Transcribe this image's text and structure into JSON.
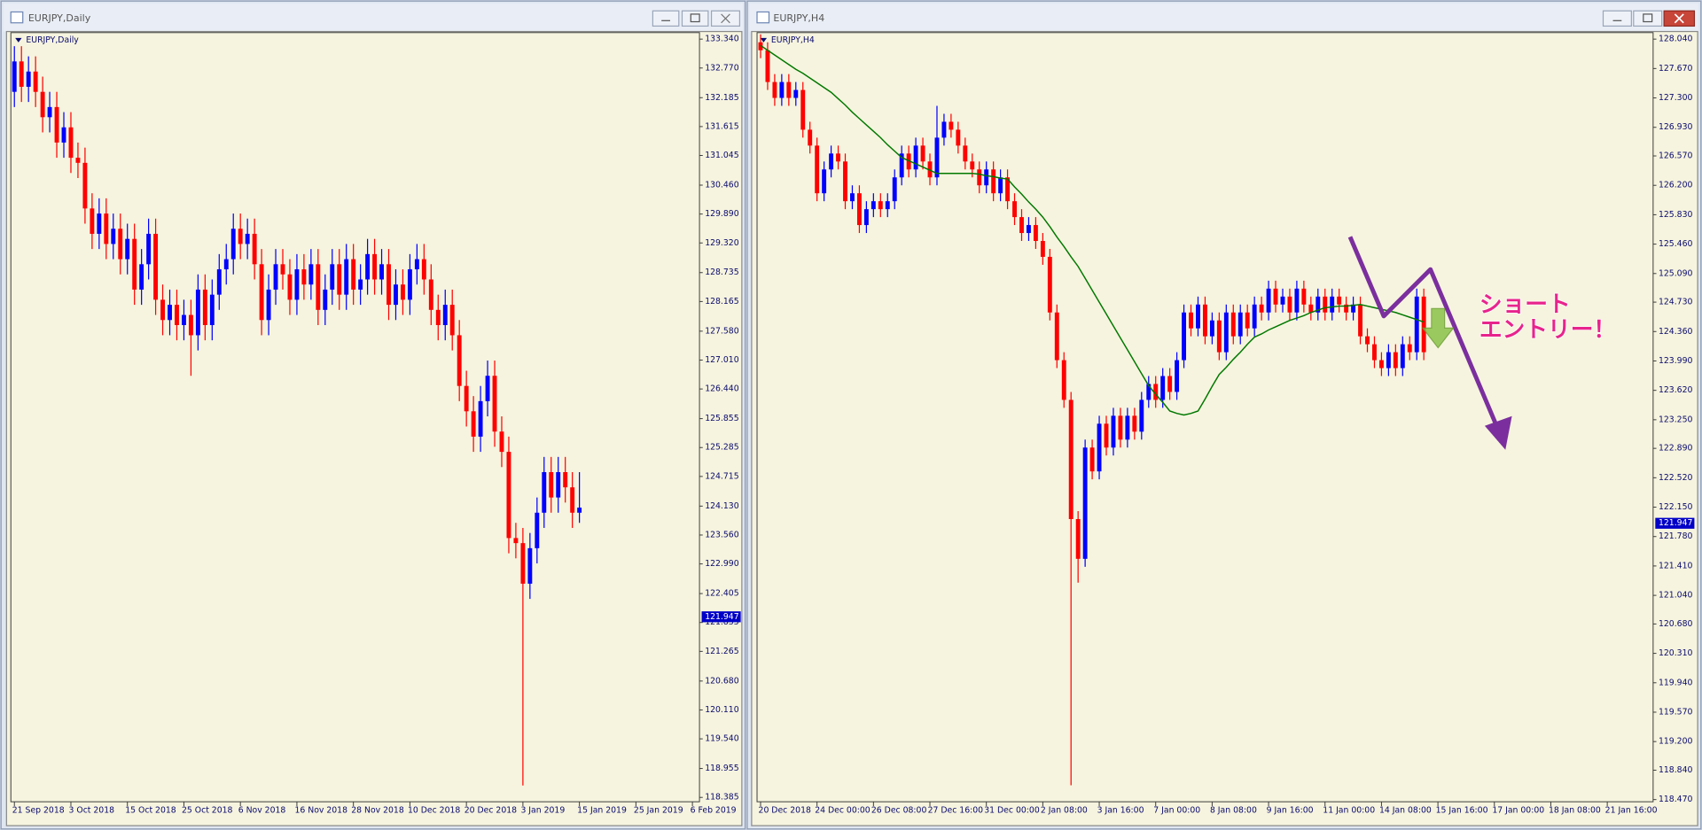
{
  "chart_data": [
    {
      "type": "candlestick",
      "window_title": "EURJPY,Daily",
      "title": "EURJPY,Daily",
      "up_color": "#0000ff",
      "down_color": "#ff0000",
      "open": [
        132.3,
        132.9,
        132.4,
        132.7,
        132.3,
        131.8,
        132.0,
        131.3,
        131.6,
        131.0,
        130.9,
        130.0,
        129.5,
        129.9,
        129.3,
        129.6,
        129.0,
        129.4,
        128.4,
        128.9,
        129.5,
        128.2,
        127.8,
        128.1,
        127.7,
        127.9,
        127.5,
        128.4,
        127.7,
        128.3,
        128.8,
        129.0,
        129.6,
        129.3,
        129.5,
        128.9,
        127.8,
        128.4,
        128.9,
        128.7,
        128.2,
        128.8,
        128.5,
        128.9,
        128.0,
        128.4,
        128.9,
        128.3,
        129.0,
        128.4,
        128.6,
        129.1,
        128.6,
        128.9,
        128.1,
        128.5,
        128.2,
        128.8,
        129.0,
        128.6,
        128.0,
        127.7,
        128.1,
        127.5,
        126.5,
        126.0,
        125.5,
        126.2,
        126.7,
        125.6,
        125.2,
        123.5,
        123.4,
        122.6,
        123.3,
        124.0,
        124.8,
        124.3,
        124.8,
        124.5,
        124.0
      ],
      "high": [
        133.2,
        133.2,
        133.0,
        133.0,
        132.6,
        132.3,
        132.3,
        131.9,
        131.9,
        131.3,
        131.2,
        130.3,
        130.2,
        130.2,
        129.9,
        129.9,
        129.7,
        129.7,
        129.2,
        129.8,
        129.8,
        128.5,
        128.4,
        128.4,
        128.2,
        128.2,
        128.7,
        128.7,
        128.6,
        129.1,
        129.3,
        129.9,
        129.9,
        129.8,
        129.8,
        129.2,
        128.7,
        129.2,
        129.2,
        129.0,
        129.1,
        129.1,
        129.2,
        129.2,
        128.7,
        129.2,
        129.2,
        129.3,
        129.3,
        128.9,
        129.4,
        129.4,
        129.2,
        129.2,
        128.8,
        128.8,
        129.1,
        129.3,
        129.3,
        128.9,
        128.3,
        128.4,
        128.4,
        127.8,
        126.8,
        126.3,
        126.5,
        127.0,
        127.0,
        125.9,
        125.5,
        123.8,
        123.7,
        123.6,
        124.3,
        125.1,
        125.1,
        125.1,
        125.1,
        124.8,
        124.8
      ],
      "low": [
        132.0,
        132.1,
        132.1,
        132.0,
        131.5,
        131.5,
        131.0,
        131.0,
        130.7,
        130.6,
        129.7,
        129.2,
        129.2,
        129.0,
        129.0,
        128.7,
        128.7,
        128.1,
        128.1,
        128.6,
        127.9,
        127.5,
        127.5,
        127.4,
        127.4,
        126.7,
        127.2,
        127.4,
        127.4,
        128.0,
        128.5,
        128.7,
        129.0,
        129.0,
        128.6,
        127.5,
        127.5,
        128.1,
        128.4,
        127.9,
        127.9,
        128.2,
        128.2,
        127.7,
        127.7,
        128.1,
        128.0,
        128.0,
        128.1,
        128.1,
        128.3,
        128.3,
        128.3,
        127.8,
        127.8,
        127.9,
        127.9,
        128.5,
        128.3,
        127.7,
        127.4,
        127.4,
        127.2,
        126.2,
        125.7,
        125.2,
        125.2,
        125.9,
        125.3,
        124.9,
        123.2,
        123.1,
        118.62,
        122.3,
        123.0,
        123.7,
        124.0,
        124.0,
        124.2,
        123.7,
        123.8
      ],
      "close": [
        132.9,
        132.4,
        132.7,
        132.3,
        131.8,
        132.0,
        131.3,
        131.6,
        131.0,
        130.9,
        130.0,
        129.5,
        129.9,
        129.3,
        129.6,
        129.0,
        129.4,
        128.4,
        128.9,
        129.5,
        128.2,
        127.8,
        128.1,
        127.7,
        127.9,
        127.5,
        128.4,
        127.7,
        128.3,
        128.8,
        129.0,
        129.6,
        129.3,
        129.5,
        128.9,
        127.8,
        128.4,
        128.9,
        128.7,
        128.2,
        128.8,
        128.5,
        128.9,
        128.0,
        128.4,
        128.9,
        128.3,
        129.0,
        128.4,
        128.6,
        129.1,
        128.6,
        128.9,
        128.1,
        128.5,
        128.2,
        128.8,
        129.0,
        128.6,
        128.0,
        127.7,
        128.1,
        127.5,
        126.5,
        126.0,
        125.5,
        126.2,
        126.7,
        125.6,
        125.2,
        123.5,
        123.4,
        122.6,
        123.3,
        124.0,
        124.8,
        124.3,
        124.8,
        124.5,
        124.0,
        124.1
      ],
      "current_price": 121.947,
      "xlim": [
        -0.5,
        97
      ],
      "xticks": [
        {
          "value": 0,
          "label": "21 Sep 2018"
        },
        {
          "value": 8,
          "label": "3 Oct 2018"
        },
        {
          "value": 16,
          "label": "15 Oct 2018"
        },
        {
          "value": 24,
          "label": "25 Oct 2018"
        },
        {
          "value": 32,
          "label": "6 Nov 2018"
        },
        {
          "value": 40,
          "label": "16 Nov 2018"
        },
        {
          "value": 48,
          "label": "28 Nov 2018"
        },
        {
          "value": 56,
          "label": "10 Dec 2018"
        },
        {
          "value": 64,
          "label": "20 Dec 2018"
        },
        {
          "value": 72,
          "label": "3 Jan 2019"
        },
        {
          "value": 80,
          "label": "15 Jan 2019"
        },
        {
          "value": 88,
          "label": "25 Jan 2019"
        },
        {
          "value": 96,
          "label": "6 Feb 2019"
        }
      ],
      "ylim": [
        118.385,
        133.34
      ],
      "yticks": [
        {
          "value": 133.34,
          "label": "133.340"
        },
        {
          "value": 132.77,
          "label": "132.770"
        },
        {
          "value": 132.185,
          "label": "132.185"
        },
        {
          "value": 131.615,
          "label": "131.615"
        },
        {
          "value": 131.045,
          "label": "131.045"
        },
        {
          "value": 130.46,
          "label": "130.460"
        },
        {
          "value": 129.89,
          "label": "129.890"
        },
        {
          "value": 129.32,
          "label": "129.320"
        },
        {
          "value": 128.735,
          "label": "128.735"
        },
        {
          "value": 128.165,
          "label": "128.165"
        },
        {
          "value": 127.58,
          "label": "127.580"
        },
        {
          "value": 127.01,
          "label": "127.010"
        },
        {
          "value": 126.44,
          "label": "126.440"
        },
        {
          "value": 125.855,
          "label": "125.855"
        },
        {
          "value": 125.285,
          "label": "125.285"
        },
        {
          "value": 124.715,
          "label": "124.715"
        },
        {
          "value": 124.13,
          "label": "124.130"
        },
        {
          "value": 123.56,
          "label": "123.560"
        },
        {
          "value": 122.99,
          "label": "122.990"
        },
        {
          "value": 122.405,
          "label": "122.405"
        },
        {
          "value": 121.835,
          "label": "121.835"
        },
        {
          "value": 121.265,
          "label": "121.265"
        },
        {
          "value": 120.68,
          "label": "120.680"
        },
        {
          "value": 120.11,
          "label": "120.110"
        },
        {
          "value": 119.54,
          "label": "119.540"
        },
        {
          "value": 118.955,
          "label": "118.955"
        },
        {
          "value": 118.385,
          "label": "118.385"
        }
      ]
    },
    {
      "type": "candlestick",
      "window_title": "EURJPY,H4",
      "title": "EURJPY,H4",
      "up_color": "#0000ff",
      "down_color": "#ff0000",
      "open": [
        128.0,
        127.9,
        127.5,
        127.3,
        127.5,
        127.3,
        127.4,
        126.9,
        126.7,
        126.1,
        126.4,
        126.6,
        126.5,
        126.0,
        126.1,
        125.7,
        125.9,
        126.0,
        125.9,
        126.0,
        126.3,
        126.6,
        126.4,
        126.7,
        126.5,
        126.3,
        126.8,
        127.0,
        126.9,
        126.7,
        126.5,
        126.4,
        126.2,
        126.4,
        126.1,
        126.3,
        126.0,
        125.8,
        125.6,
        125.7,
        125.5,
        125.3,
        124.6,
        124.0,
        123.5,
        122.0,
        121.5,
        122.9,
        122.6,
        123.2,
        122.9,
        123.3,
        123.0,
        123.3,
        123.1,
        123.5,
        123.7,
        123.5,
        123.8,
        123.6,
        124.0,
        124.6,
        124.4,
        124.7,
        124.3,
        124.5,
        124.1,
        124.6,
        124.3,
        124.6,
        124.4,
        124.7,
        124.6,
        124.9,
        124.7,
        124.8,
        124.6,
        124.9,
        124.7,
        124.6,
        124.8,
        124.6,
        124.8,
        124.7,
        124.6,
        124.7,
        124.3,
        124.2,
        124.0,
        123.9,
        124.1,
        123.9,
        124.2,
        124.1,
        124.8
      ],
      "high": [
        128.1,
        128.0,
        127.6,
        127.6,
        127.6,
        127.5,
        127.5,
        127.0,
        126.8,
        126.5,
        126.7,
        126.7,
        126.6,
        126.2,
        126.2,
        126.0,
        126.1,
        126.1,
        126.1,
        126.4,
        126.7,
        126.7,
        126.8,
        126.8,
        126.6,
        127.2,
        127.1,
        127.1,
        127.0,
        126.8,
        126.6,
        126.5,
        126.5,
        126.5,
        126.4,
        126.4,
        126.1,
        125.9,
        125.8,
        125.8,
        125.6,
        125.4,
        124.7,
        124.1,
        123.6,
        122.1,
        123.0,
        123.0,
        123.3,
        123.3,
        123.4,
        123.4,
        123.4,
        123.4,
        123.6,
        123.8,
        123.8,
        123.9,
        123.9,
        124.1,
        124.7,
        124.7,
        124.8,
        124.8,
        124.6,
        124.6,
        124.7,
        124.7,
        124.7,
        124.7,
        124.8,
        124.8,
        125.0,
        125.0,
        124.9,
        124.9,
        125.0,
        125.0,
        124.8,
        124.9,
        124.9,
        124.9,
        124.9,
        124.8,
        124.8,
        124.8,
        124.4,
        124.3,
        124.1,
        124.2,
        124.2,
        124.3,
        124.3,
        124.9,
        124.9
      ],
      "low": [
        127.8,
        127.4,
        127.2,
        127.2,
        127.2,
        127.2,
        126.8,
        126.6,
        126.0,
        126.0,
        126.3,
        126.4,
        125.9,
        125.9,
        125.6,
        125.6,
        125.8,
        125.8,
        125.8,
        125.9,
        126.2,
        126.3,
        126.3,
        126.4,
        126.2,
        126.2,
        126.7,
        126.8,
        126.6,
        126.4,
        126.3,
        126.1,
        126.1,
        126.0,
        126.0,
        125.9,
        125.7,
        125.5,
        125.5,
        125.4,
        125.2,
        124.5,
        123.9,
        123.4,
        118.65,
        121.2,
        121.4,
        122.5,
        122.5,
        122.8,
        122.8,
        122.9,
        122.9,
        123.0,
        123.0,
        123.4,
        123.4,
        123.4,
        123.5,
        123.5,
        123.9,
        124.3,
        124.3,
        124.2,
        124.2,
        124.0,
        124.0,
        124.2,
        124.2,
        124.3,
        124.3,
        124.5,
        124.5,
        124.6,
        124.6,
        124.5,
        124.5,
        124.6,
        124.5,
        124.5,
        124.5,
        124.5,
        124.6,
        124.5,
        124.5,
        124.2,
        124.1,
        123.9,
        123.8,
        123.8,
        123.8,
        123.8,
        124.0,
        124.0,
        124.0
      ],
      "close": [
        127.9,
        127.5,
        127.3,
        127.5,
        127.3,
        127.4,
        126.9,
        126.7,
        126.1,
        126.4,
        126.6,
        126.5,
        126.0,
        126.1,
        125.7,
        125.9,
        126.0,
        125.9,
        126.0,
        126.3,
        126.6,
        126.4,
        126.7,
        126.5,
        126.3,
        126.8,
        127.0,
        126.9,
        126.7,
        126.5,
        126.4,
        126.2,
        126.4,
        126.1,
        126.3,
        126.0,
        125.8,
        125.6,
        125.7,
        125.5,
        125.3,
        124.6,
        124.0,
        123.5,
        122.0,
        121.5,
        122.9,
        122.6,
        123.2,
        122.9,
        123.3,
        123.0,
        123.3,
        123.1,
        123.5,
        123.7,
        123.5,
        123.8,
        123.6,
        124.0,
        124.6,
        124.4,
        124.7,
        124.3,
        124.5,
        124.1,
        124.6,
        124.3,
        124.6,
        124.4,
        124.7,
        124.6,
        124.9,
        124.7,
        124.8,
        124.6,
        124.9,
        124.7,
        124.6,
        124.8,
        124.6,
        124.8,
        124.7,
        124.6,
        124.7,
        124.3,
        124.2,
        124.0,
        123.9,
        124.1,
        123.9,
        124.2,
        124.1,
        124.8,
        124.1
      ],
      "moving_average": {
        "color": "#007800",
        "values": [
          127.96,
          127.9,
          127.84,
          127.78,
          127.72,
          127.66,
          127.61,
          127.55,
          127.49,
          127.43,
          127.37,
          127.29,
          127.21,
          127.12,
          127.04,
          126.96,
          126.88,
          126.8,
          126.71,
          126.63,
          126.55,
          126.51,
          126.47,
          126.43,
          126.39,
          126.35,
          126.35,
          126.35,
          126.35,
          126.35,
          126.35,
          126.34,
          126.32,
          126.31,
          126.29,
          126.28,
          126.18,
          126.09,
          125.99,
          125.9,
          125.8,
          125.68,
          125.55,
          125.43,
          125.3,
          125.18,
          125.03,
          124.88,
          124.73,
          124.58,
          124.43,
          124.28,
          124.13,
          123.98,
          123.83,
          123.68,
          123.57,
          123.47,
          123.36,
          123.33,
          123.31,
          123.33,
          123.36,
          123.51,
          123.67,
          123.82,
          123.91,
          124.01,
          124.1,
          124.2,
          124.29,
          124.33,
          124.38,
          124.42,
          124.46,
          124.5,
          124.53,
          124.56,
          124.6,
          124.63,
          124.66,
          124.67,
          124.68,
          124.68,
          124.69,
          124.7,
          124.68,
          124.66,
          124.64,
          124.62,
          124.6,
          124.57,
          124.54,
          124.51,
          124.48
        ]
      },
      "annotations": [
        "ショート",
        "エントリー！"
      ],
      "current_price": 121.947,
      "xlim": [
        -0.5,
        126.5
      ],
      "xticks": [
        {
          "value": 0,
          "label": "20 Dec 2018"
        },
        {
          "value": 8,
          "label": "24 Dec 00:00"
        },
        {
          "value": 16,
          "label": "26 Dec 08:00"
        },
        {
          "value": 24,
          "label": "27 Dec 16:00"
        },
        {
          "value": 32,
          "label": "31 Dec 00:00"
        },
        {
          "value": 40,
          "label": "2 Jan 08:00"
        },
        {
          "value": 48,
          "label": "3 Jan 16:00"
        },
        {
          "value": 56,
          "label": "7 Jan 00:00"
        },
        {
          "value": 64,
          "label": "8 Jan 08:00"
        },
        {
          "value": 72,
          "label": "9 Jan 16:00"
        },
        {
          "value": 80,
          "label": "11 Jan 00:00"
        },
        {
          "value": 88,
          "label": "14 Jan 08:00"
        },
        {
          "value": 96,
          "label": "15 Jan 16:00"
        },
        {
          "value": 104,
          "label": "17 Jan 00:00"
        },
        {
          "value": 112,
          "label": "18 Jan 08:00"
        },
        {
          "value": 120,
          "label": "21 Jan 16:00"
        }
      ],
      "ylim": [
        118.47,
        128.04
      ],
      "yticks": [
        {
          "value": 128.04,
          "label": "128.040"
        },
        {
          "value": 127.67,
          "label": "127.670"
        },
        {
          "value": 127.3,
          "label": "127.300"
        },
        {
          "value": 126.93,
          "label": "126.930"
        },
        {
          "value": 126.57,
          "label": "126.570"
        },
        {
          "value": 126.2,
          "label": "126.200"
        },
        {
          "value": 125.83,
          "label": "125.830"
        },
        {
          "value": 125.46,
          "label": "125.460"
        },
        {
          "value": 125.09,
          "label": "125.090"
        },
        {
          "value": 124.73,
          "label": "124.730"
        },
        {
          "value": 124.36,
          "label": "124.360"
        },
        {
          "value": 123.99,
          "label": "123.990"
        },
        {
          "value": 123.62,
          "label": "123.620"
        },
        {
          "value": 123.25,
          "label": "123.250"
        },
        {
          "value": 122.89,
          "label": "122.890"
        },
        {
          "value": 122.52,
          "label": "122.520"
        },
        {
          "value": 122.15,
          "label": "122.150"
        },
        {
          "value": 121.78,
          "label": "121.780"
        },
        {
          "value": 121.41,
          "label": "121.410"
        },
        {
          "value": 121.04,
          "label": "121.040"
        },
        {
          "value": 120.68,
          "label": "120.680"
        },
        {
          "value": 120.31,
          "label": "120.310"
        },
        {
          "value": 119.94,
          "label": "119.940"
        },
        {
          "value": 119.57,
          "label": "119.570"
        },
        {
          "value": 119.2,
          "label": "119.200"
        },
        {
          "value": 118.84,
          "label": "118.840"
        },
        {
          "value": 118.47,
          "label": "118.470"
        }
      ]
    }
  ]
}
